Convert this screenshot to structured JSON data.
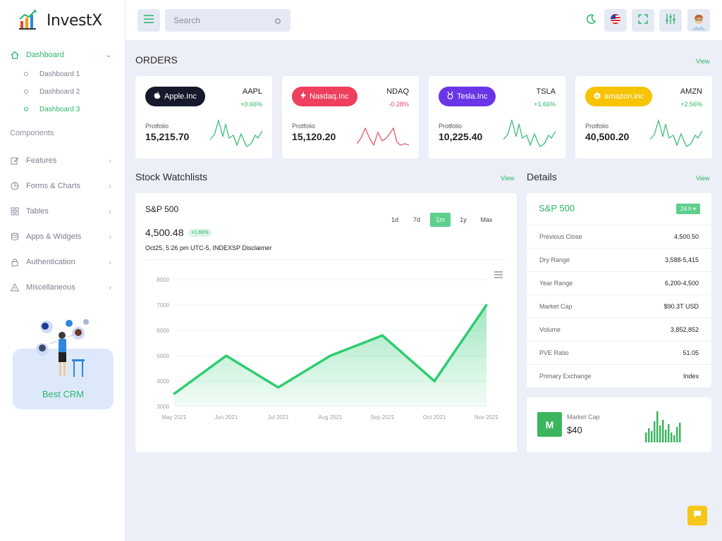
{
  "brand": {
    "name": "InvestX"
  },
  "sidebar": {
    "dashboard": "Dashboard",
    "sub_items": [
      "Dashboard 1",
      "Dashboard 2",
      "Dashboard 3"
    ],
    "components_label": "Components",
    "items": [
      {
        "label": "Features",
        "icon": "edit-icon"
      },
      {
        "label": "Forms & Charts",
        "icon": "pie-chart-icon"
      },
      {
        "label": "Tables",
        "icon": "grid-icon"
      },
      {
        "label": "Apps & Widgets",
        "icon": "database-icon"
      },
      {
        "label": "Authentication",
        "icon": "lock-icon"
      },
      {
        "label": "Miscellaneous",
        "icon": "warning-icon"
      }
    ],
    "promo": "Best CRM"
  },
  "topbar": {
    "search_placeholder": "Search"
  },
  "orders": {
    "title": "ORDERS",
    "view": "View",
    "cards": [
      {
        "name": "Apple.Inc",
        "ticker": "AAPL",
        "change": "+0.66%",
        "trend": "up",
        "label": "Protfolio",
        "value": "15,215.70",
        "color": "#15192b",
        "line": "#3bc07a"
      },
      {
        "name": "Nasdaq.Inc",
        "ticker": "NDAQ",
        "change": "-0.28%",
        "trend": "down",
        "label": "Protfolio",
        "value": "15,120.20",
        "color": "#ee3f5d",
        "line": "#e15a6f"
      },
      {
        "name": "Tesla.Inc",
        "ticker": "TSLA",
        "change": "+1.66%",
        "trend": "up",
        "label": "Protfolio",
        "value": "10,225.40",
        "color": "#6a35e8",
        "line": "#3bc07a"
      },
      {
        "name": "amazon.inc",
        "ticker": "AMZN",
        "change": "+2.56%",
        "trend": "up",
        "label": "Protfolio",
        "value": "40,500.20",
        "color": "#f6c305",
        "line": "#3bc07a"
      }
    ]
  },
  "watchlist": {
    "title": "Stock Watchlists",
    "view": "View",
    "index_name": "S&P 500",
    "price": "4,500.48",
    "badge": "+1.66%",
    "subtitle": "Oct25, 5:26 pm UTC-5, INDEXSP Disclaimer",
    "ranges": [
      "1d",
      "7d",
      "1m",
      "1y",
      "Max"
    ],
    "active_range": "1m"
  },
  "chart_data": {
    "type": "area",
    "categories": [
      "May 2021",
      "Jun 2021",
      "Jul 2021",
      "Aug 2021",
      "Sep 2021",
      "Oct 2021",
      "Nov 2021"
    ],
    "x": [
      "May 2021",
      "Jun 2021",
      "Jul 2021",
      "Aug 2021",
      "Sep 2021",
      "Oct 2021",
      "Nov 2021"
    ],
    "values": [
      3500,
      5000,
      3750,
      5000,
      5800,
      4000,
      7000
    ],
    "y_ticks": [
      3000,
      4000,
      5000,
      6000,
      7000,
      8000
    ],
    "ylim": [
      3000,
      8000
    ],
    "color": "#2ecc71",
    "grid": true
  },
  "details": {
    "title": "Details",
    "view": "View",
    "name": "S&P 500",
    "period": "24 h",
    "rows": [
      {
        "k": "Previous Close",
        "v": "4,500.50"
      },
      {
        "k": "Dry Range",
        "v": "3,588-5,415"
      },
      {
        "k": "Year Range",
        "v": "6,200-4,500"
      },
      {
        "k": "Market Cap",
        "v": "$90.3T USD"
      },
      {
        "k": "Volume",
        "v": "3,852,852"
      },
      {
        "k": "PVE Ratio",
        "v": "51.05"
      },
      {
        "k": "Primary Exchange",
        "v": "Index"
      }
    ]
  },
  "market_cap": {
    "badge": "M",
    "label": "Market Cap",
    "value": "$40"
  }
}
